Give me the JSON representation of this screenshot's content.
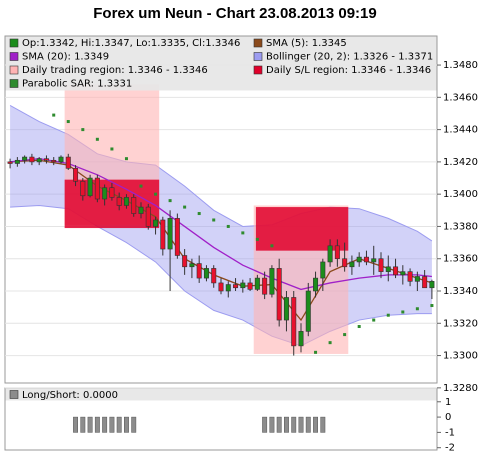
{
  "chart_data": [
    {
      "type": "candlestick",
      "title": "Forex um Neun - Chart 23.08.2013 09:19",
      "name": "Op:1.3342, Hi:1.3347, Lo:1.3335, Cl:1.3346",
      "up_color": "#1c8c1c",
      "down_color": "#e8112d",
      "open": [
        1.342,
        1.3419,
        1.3421,
        1.3423,
        1.342,
        1.3422,
        1.3421,
        1.342,
        1.3423,
        1.3416,
        1.3408,
        1.3399,
        1.341,
        1.3397,
        1.3404,
        1.3398,
        1.3393,
        1.3398,
        1.3388,
        1.3392,
        1.338,
        1.3384,
        1.3366,
        1.3385,
        1.3362,
        1.3355,
        1.3357,
        1.3348,
        1.3354,
        1.3345,
        1.334,
        1.3344,
        1.3342,
        1.3345,
        1.3341,
        1.3348,
        1.3338,
        1.3354,
        1.3322,
        1.3336,
        1.3306,
        1.3315,
        1.334,
        1.3348,
        1.3358,
        1.3368,
        1.336,
        1.3355,
        1.3358,
        1.3361,
        1.3358,
        1.336,
        1.3352,
        1.3355,
        1.335,
        1.3352,
        1.3346,
        1.3349,
        1.3342
      ],
      "high": [
        1.3422,
        1.3423,
        1.3424,
        1.3425,
        1.3423,
        1.3424,
        1.3423,
        1.3424,
        1.3425,
        1.3418,
        1.341,
        1.3412,
        1.3412,
        1.3406,
        1.3407,
        1.3401,
        1.34,
        1.34,
        1.3395,
        1.3394,
        1.3386,
        1.3386,
        1.339,
        1.3388,
        1.3366,
        1.336,
        1.3362,
        1.3356,
        1.3356,
        1.3348,
        1.3346,
        1.3348,
        1.3347,
        1.3348,
        1.335,
        1.3352,
        1.3356,
        1.336,
        1.334,
        1.334,
        1.332,
        1.3345,
        1.3352,
        1.336,
        1.3372,
        1.3372,
        1.337,
        1.3362,
        1.3364,
        1.3365,
        1.3368,
        1.3364,
        1.3362,
        1.336,
        1.3356,
        1.3354,
        1.3352,
        1.3353,
        1.3347
      ],
      "low": [
        1.3416,
        1.3417,
        1.3419,
        1.3418,
        1.3418,
        1.3419,
        1.3418,
        1.3419,
        1.3415,
        1.3405,
        1.3396,
        1.3398,
        1.3395,
        1.3393,
        1.3396,
        1.339,
        1.3391,
        1.3386,
        1.3385,
        1.3378,
        1.3375,
        1.3362,
        1.334,
        1.336,
        1.335,
        1.3348,
        1.3345,
        1.3346,
        1.3342,
        1.3338,
        1.3336,
        1.334,
        1.3339,
        1.334,
        1.334,
        1.3335,
        1.3336,
        1.3318,
        1.3315,
        1.33,
        1.3302,
        1.3312,
        1.3336,
        1.334,
        1.3355,
        1.3355,
        1.3352,
        1.335,
        1.3355,
        1.3356,
        1.335,
        1.3348,
        1.3346,
        1.3348,
        1.3344,
        1.3343,
        1.334,
        1.3342,
        1.3335
      ],
      "close": [
        1.3419,
        1.3421,
        1.3423,
        1.342,
        1.3422,
        1.3421,
        1.342,
        1.3423,
        1.3416,
        1.3408,
        1.3399,
        1.341,
        1.3397,
        1.3404,
        1.3398,
        1.3393,
        1.3398,
        1.3388,
        1.3392,
        1.338,
        1.3384,
        1.3366,
        1.3385,
        1.3362,
        1.3355,
        1.3357,
        1.3348,
        1.3354,
        1.3345,
        1.334,
        1.3344,
        1.3342,
        1.3345,
        1.3341,
        1.3348,
        1.3338,
        1.3354,
        1.3322,
        1.3336,
        1.3306,
        1.3315,
        1.334,
        1.3348,
        1.3358,
        1.3368,
        1.336,
        1.3355,
        1.3358,
        1.3361,
        1.3358,
        1.336,
        1.3352,
        1.3355,
        1.335,
        1.3352,
        1.3346,
        1.3349,
        1.3342,
        1.3346
      ],
      "xlim": [
        -0.7,
        58.7
      ],
      "ylim": [
        1.3283,
        1.3498
      ],
      "yticks": [
        {
          "value": 1.328,
          "label": "1.3280"
        },
        {
          "value": 1.33,
          "label": "1.3300"
        },
        {
          "value": 1.332,
          "label": "1.3320"
        },
        {
          "value": 1.334,
          "label": "1.3340"
        },
        {
          "value": 1.336,
          "label": "1.3360"
        },
        {
          "value": 1.338,
          "label": "1.3380"
        },
        {
          "value": 1.34,
          "label": "1.3400"
        },
        {
          "value": 1.342,
          "label": "1.3420"
        },
        {
          "value": 1.344,
          "label": "1.3440"
        },
        {
          "value": 1.346,
          "label": "1.3460"
        },
        {
          "value": 1.348,
          "label": "1.3480"
        }
      ],
      "grid": true,
      "series": [
        {
          "name": "SMA (5): 1.3345",
          "color": "#8b4a1c",
          "kind": "line",
          "x": [
            0,
            4,
            8,
            12,
            16,
            20,
            24,
            28,
            32,
            36,
            40,
            44,
            48,
            52,
            56,
            58
          ],
          "values": [
            1.342,
            1.3421,
            1.3418,
            1.3405,
            1.3396,
            1.3386,
            1.336,
            1.335,
            1.3343,
            1.3344,
            1.3322,
            1.3352,
            1.336,
            1.3354,
            1.3348,
            1.3345
          ]
        },
        {
          "name": "SMA (20): 1.3349",
          "color": "#a020c8",
          "kind": "line",
          "x": [
            0,
            4,
            8,
            12,
            16,
            20,
            24,
            28,
            32,
            36,
            40,
            44,
            48,
            52,
            56,
            58
          ],
          "values": [
            1.342,
            1.3422,
            1.3419,
            1.3412,
            1.3403,
            1.3393,
            1.338,
            1.3367,
            1.3356,
            1.3348,
            1.3341,
            1.3345,
            1.3348,
            1.335,
            1.335,
            1.3349
          ]
        },
        {
          "name": "Bollinger (20, 2): 1.3326 - 1.3371",
          "color": "#9c9cf0",
          "kind": "band",
          "x": [
            0,
            4,
            8,
            12,
            16,
            20,
            24,
            28,
            32,
            36,
            40,
            44,
            48,
            52,
            56,
            58
          ],
          "upper": [
            1.3455,
            1.3445,
            1.3437,
            1.3425,
            1.342,
            1.3418,
            1.3405,
            1.339,
            1.338,
            1.3381,
            1.3388,
            1.3392,
            1.3391,
            1.3385,
            1.3377,
            1.3371
          ],
          "lower": [
            1.3392,
            1.3393,
            1.3391,
            1.338,
            1.337,
            1.3358,
            1.334,
            1.3328,
            1.3322,
            1.3312,
            1.3306,
            1.3315,
            1.3322,
            1.3325,
            1.3326,
            1.3326
          ]
        },
        {
          "name": "Parabolic SAR: 1.3331",
          "color": "#2e8b2e",
          "kind": "dots",
          "x": [
            6,
            8,
            10,
            12,
            14,
            16,
            18,
            20,
            22,
            24,
            26,
            28,
            30,
            32,
            34,
            36,
            42,
            44,
            46,
            48,
            50,
            52,
            54,
            56,
            58
          ],
          "values": [
            1.3449,
            1.3445,
            1.344,
            1.3434,
            1.3428,
            1.3422,
            1.3405,
            1.34,
            1.3396,
            1.3392,
            1.3388,
            1.3384,
            1.338,
            1.3376,
            1.3372,
            1.3368,
            1.3302,
            1.3308,
            1.3313,
            1.3318,
            1.3322,
            1.3325,
            1.3327,
            1.3329,
            1.3331
          ]
        }
      ],
      "regions": [
        {
          "name": "Daily trading region: 1.3346 - 1.3346",
          "color": "#ffb4b4",
          "items": [
            {
              "x": [
                7.5,
                20.5
              ],
              "y": [
                1.3381,
                1.3468
              ]
            },
            {
              "x": [
                33.5,
                46.5
              ],
              "y": [
                1.3301,
                1.3393
              ]
            }
          ]
        },
        {
          "name": "Daily S/L region: 1.3346 - 1.3346",
          "color": "#e0002a",
          "items": [
            {
              "x": [
                7.5,
                20.5
              ],
              "y": [
                1.3379,
                1.3409
              ]
            },
            {
              "x": [
                33.8,
                46.5
              ],
              "y": [
                1.3365,
                1.3392
              ]
            }
          ]
        }
      ]
    },
    {
      "type": "bar",
      "title": "Long/Short: 0.0000",
      "color": "#8c8c8c",
      "values": [
        0,
        0,
        0,
        0,
        0,
        0,
        0,
        0,
        0,
        -1,
        -1,
        -1,
        -1,
        -1,
        -1,
        -1,
        -1,
        -1,
        0,
        0,
        0,
        0,
        0,
        0,
        0,
        0,
        0,
        0,
        0,
        0,
        0,
        0,
        0,
        0,
        0,
        -1,
        -1,
        -1,
        -1,
        -1,
        -1,
        -1,
        -1,
        -1,
        0,
        0,
        0,
        0,
        0,
        0,
        0,
        0,
        0,
        0,
        0,
        0,
        0,
        0,
        0
      ],
      "xlim": [
        -0.7,
        58.7
      ],
      "ylim": [
        -2.15,
        1.9
      ],
      "yticks": [
        1,
        0,
        -1,
        -2
      ]
    }
  ]
}
